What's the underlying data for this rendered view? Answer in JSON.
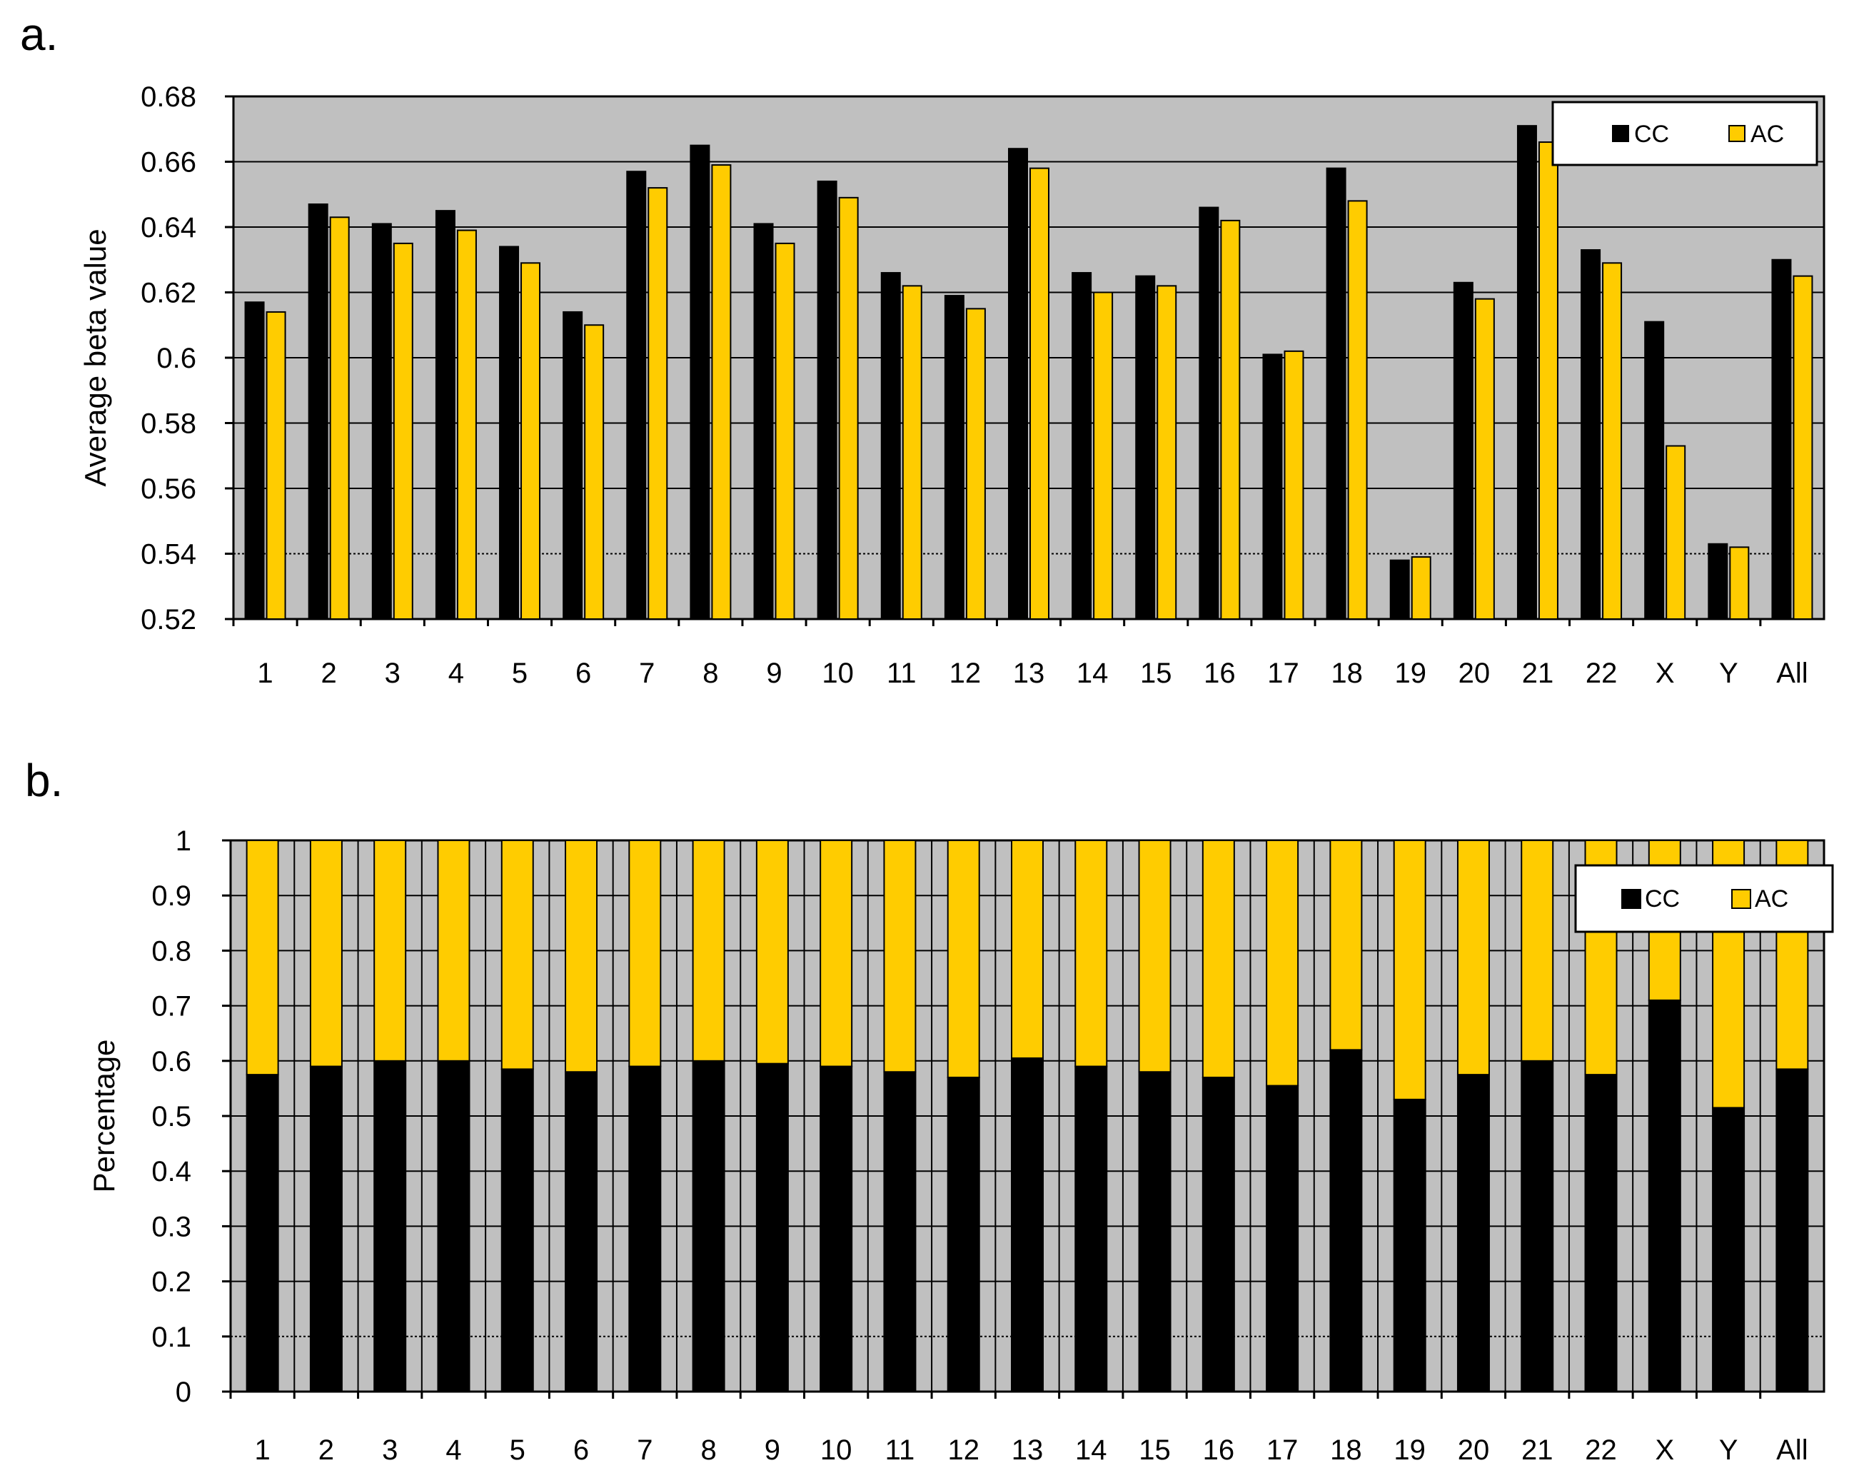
{
  "chart_data": [
    {
      "panel_label": "a.",
      "type": "bar",
      "categories": [
        "1",
        "2",
        "3",
        "4",
        "5",
        "6",
        "7",
        "8",
        "9",
        "10",
        "11",
        "12",
        "13",
        "14",
        "15",
        "16",
        "17",
        "18",
        "19",
        "20",
        "21",
        "22",
        "X",
        "Y",
        "All"
      ],
      "series": [
        {
          "name": "CC",
          "color": "#000000",
          "values": [
            0.617,
            0.647,
            0.641,
            0.645,
            0.634,
            0.614,
            0.657,
            0.665,
            0.641,
            0.654,
            0.626,
            0.619,
            0.664,
            0.626,
            0.625,
            0.646,
            0.601,
            0.658,
            0.538,
            0.623,
            0.671,
            0.633,
            0.611,
            0.543,
            0.63
          ]
        },
        {
          "name": "AC",
          "color": "#FFCC00",
          "values": [
            0.614,
            0.643,
            0.635,
            0.639,
            0.629,
            0.61,
            0.652,
            0.659,
            0.635,
            0.649,
            0.622,
            0.615,
            0.658,
            0.62,
            0.622,
            0.642,
            0.602,
            0.648,
            0.539,
            0.618,
            0.666,
            0.629,
            0.573,
            0.542,
            0.625
          ]
        }
      ],
      "ylabel": "Average beta value",
      "xlabel": "",
      "ylim": [
        0.52,
        0.68
      ],
      "yticks": [
        "0.52",
        "0.54",
        "0.56",
        "0.58",
        "0.6",
        "0.62",
        "0.64",
        "0.66",
        "0.68"
      ],
      "grid": true,
      "legend": "top-right"
    },
    {
      "panel_label": "b.",
      "type": "bar",
      "stacked": true,
      "categories": [
        "1",
        "2",
        "3",
        "4",
        "5",
        "6",
        "7",
        "8",
        "9",
        "10",
        "11",
        "12",
        "13",
        "14",
        "15",
        "16",
        "17",
        "18",
        "19",
        "20",
        "21",
        "22",
        "X",
        "Y",
        "All"
      ],
      "series": [
        {
          "name": "CC",
          "color": "#000000",
          "values": [
            0.575,
            0.59,
            0.6,
            0.6,
            0.585,
            0.58,
            0.59,
            0.6,
            0.595,
            0.59,
            0.58,
            0.57,
            0.605,
            0.59,
            0.58,
            0.57,
            0.555,
            0.62,
            0.53,
            0.575,
            0.6,
            0.575,
            0.71,
            0.515,
            0.585
          ]
        },
        {
          "name": "AC",
          "color": "#FFCC00",
          "values": [
            0.425,
            0.41,
            0.4,
            0.4,
            0.415,
            0.42,
            0.41,
            0.4,
            0.405,
            0.41,
            0.42,
            0.43,
            0.395,
            0.41,
            0.42,
            0.43,
            0.445,
            0.38,
            0.47,
            0.425,
            0.4,
            0.425,
            0.29,
            0.485,
            0.415
          ]
        }
      ],
      "ylabel": "Percentage",
      "xlabel": "",
      "ylim": [
        0,
        1
      ],
      "yticks": [
        "0",
        "0.1",
        "0.2",
        "0.3",
        "0.4",
        "0.5",
        "0.6",
        "0.7",
        "0.8",
        "0.9",
        "1"
      ],
      "grid": true,
      "legend": "top-right"
    }
  ]
}
